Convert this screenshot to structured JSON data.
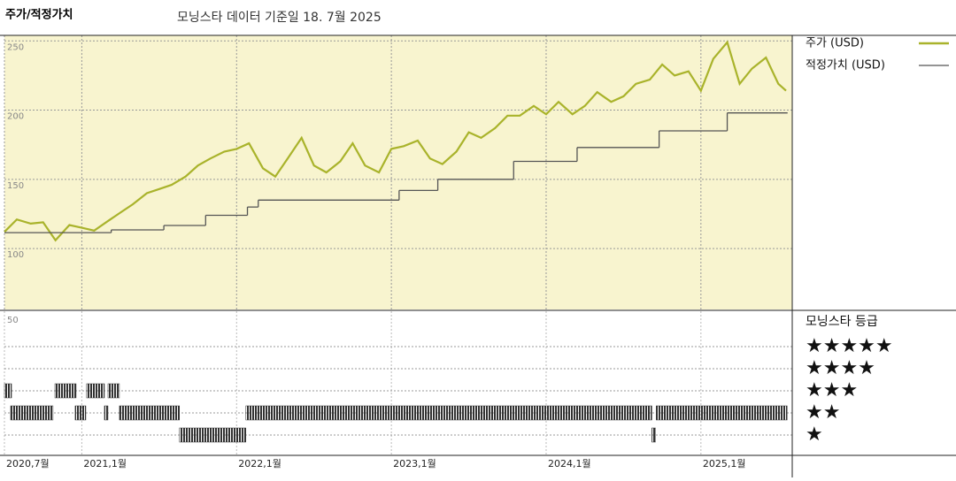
{
  "header": {
    "title": "주가/적정가치",
    "subtitle": "모닝스타 데이터 기준일 18. 7월 2025"
  },
  "chart_data": [
    {
      "type": "line",
      "xlim": [
        2020.5,
        2025.59
      ],
      "ylim": [
        56,
        254
      ],
      "yticks": [
        100,
        150,
        200,
        250
      ],
      "xticks": [
        {
          "value": 2020.5,
          "label": "2020,7월"
        },
        {
          "value": 2021.0,
          "label": "2021,1월"
        },
        {
          "value": 2022.0,
          "label": "2022,1월"
        },
        {
          "value": 2023.0,
          "label": "2023,1월"
        },
        {
          "value": 2024.0,
          "label": "2024,1월"
        },
        {
          "value": 2025.0,
          "label": "2025,1월"
        }
      ],
      "grid": true,
      "background": "#f8f4cf",
      "series": [
        {
          "name": "주가 (USD)",
          "color": "#a9b32b",
          "x": [
            2020.5,
            2020.58,
            2020.67,
            2020.75,
            2020.83,
            2020.92,
            2021.0,
            2021.08,
            2021.17,
            2021.25,
            2021.33,
            2021.42,
            2021.5,
            2021.58,
            2021.67,
            2021.75,
            2021.83,
            2021.92,
            2022.0,
            2022.08,
            2022.17,
            2022.25,
            2022.33,
            2022.42,
            2022.5,
            2022.58,
            2022.67,
            2022.75,
            2022.83,
            2022.92,
            2023.0,
            2023.08,
            2023.17,
            2023.25,
            2023.33,
            2023.42,
            2023.5,
            2023.58,
            2023.67,
            2023.75,
            2023.83,
            2023.92,
            2024.0,
            2024.08,
            2024.17,
            2024.25,
            2024.33,
            2024.42,
            2024.5,
            2024.58,
            2024.67,
            2024.75,
            2024.83,
            2024.92,
            2025.0,
            2025.08,
            2025.17,
            2025.25,
            2025.33,
            2025.42,
            2025.5,
            2025.55
          ],
          "values": [
            112,
            121,
            118,
            119,
            106,
            117,
            115,
            113,
            120,
            126,
            132,
            140,
            143,
            146,
            152,
            160,
            165,
            170,
            172,
            176,
            158,
            152,
            165,
            180,
            160,
            155,
            163,
            176,
            160,
            155,
            172,
            174,
            178,
            165,
            161,
            170,
            184,
            180,
            187,
            196,
            196,
            203,
            197,
            206,
            197,
            203,
            213,
            206,
            210,
            219,
            222,
            233,
            225,
            228,
            214,
            237,
            249,
            219,
            230,
            238,
            219,
            214
          ]
        },
        {
          "name": "적정가치 (USD)",
          "color": "#555555",
          "step": true,
          "x": [
            2020.5,
            2021.19,
            2021.53,
            2021.8,
            2022.07,
            2022.14,
            2023.05,
            2023.3,
            2023.79,
            2024.2,
            2024.73,
            2025.17,
            2025.56
          ],
          "values": [
            111.5,
            113.5,
            116.7,
            124,
            130,
            135,
            142,
            150,
            163,
            173,
            185,
            198,
            198
          ]
        }
      ]
    },
    {
      "type": "rating",
      "title": "모닝스타 등급",
      "corner_label": "50",
      "color": "#333333",
      "levels": [
        {
          "stars": 5,
          "label": "★★★★★"
        },
        {
          "stars": 4,
          "label": "★★★★"
        },
        {
          "stars": 3,
          "label": "★★★"
        },
        {
          "stars": 2,
          "label": "★★"
        },
        {
          "stars": 1,
          "label": "★"
        }
      ],
      "segments": [
        {
          "start": 2020.5,
          "end": 2020.546,
          "stars": 3
        },
        {
          "start": 2020.826,
          "end": 2020.963,
          "stars": 3
        },
        {
          "start": 2021.031,
          "end": 2021.146,
          "stars": 3
        },
        {
          "start": 2021.169,
          "end": 2021.243,
          "stars": 3
        },
        {
          "start": 2020.54,
          "end": 2020.814,
          "stars": 2
        },
        {
          "start": 2020.957,
          "end": 2021.026,
          "stars": 2
        },
        {
          "start": 2021.146,
          "end": 2021.169,
          "stars": 2
        },
        {
          "start": 2021.243,
          "end": 2021.631,
          "stars": 2
        },
        {
          "start": 2022.06,
          "end": 2024.683,
          "stars": 2
        },
        {
          "start": 2024.711,
          "end": 2025.557,
          "stars": 2
        },
        {
          "start": 2021.631,
          "end": 2022.06,
          "stars": 1
        },
        {
          "start": 2024.683,
          "end": 2024.706,
          "stars": 1
        }
      ]
    }
  ]
}
